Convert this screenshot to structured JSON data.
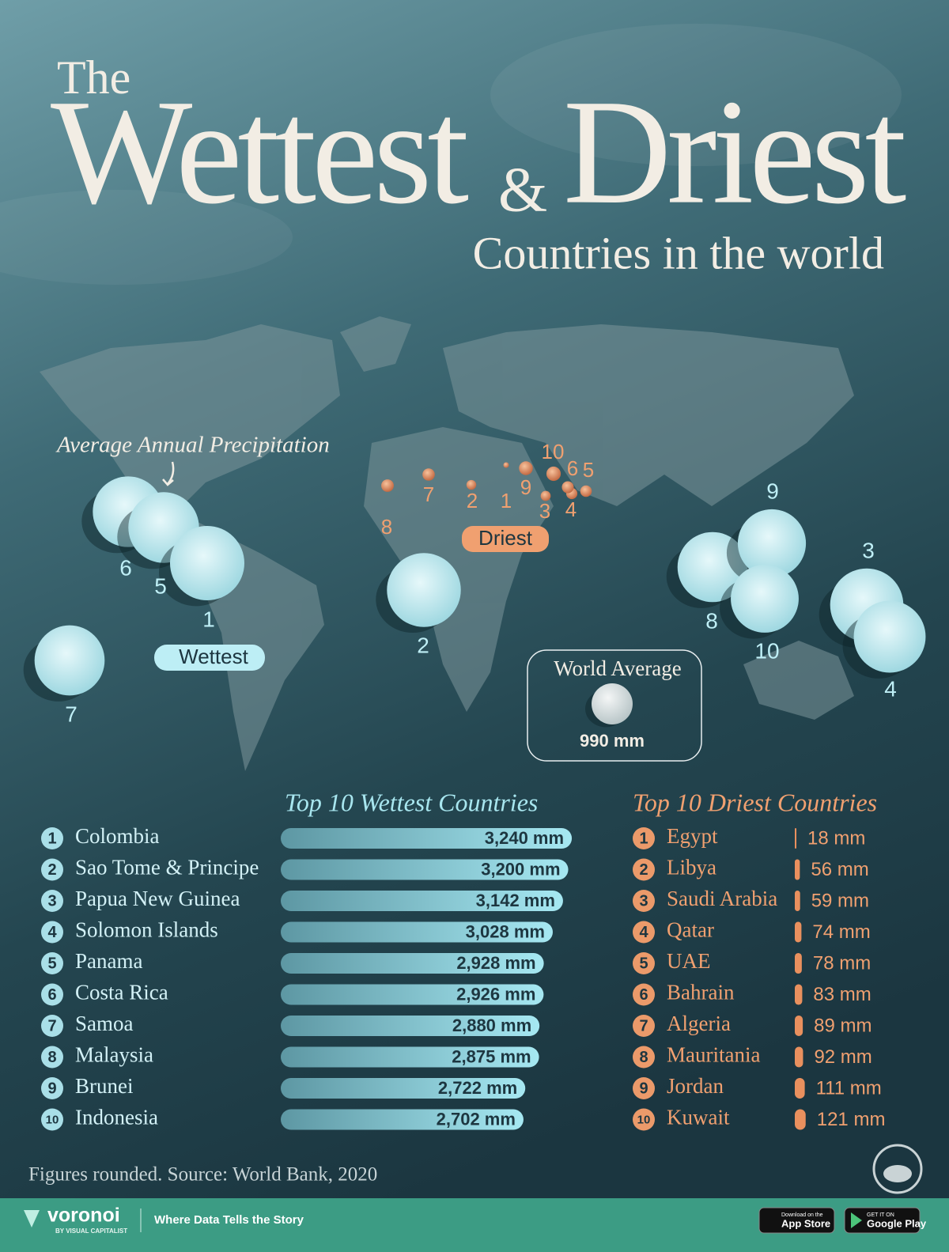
{
  "title": {
    "pre": "The",
    "left": "Wettest",
    "amp": "&",
    "right": "Driest",
    "sub": "Countries in the world"
  },
  "map": {
    "legend_label": "Average Annual Precipitation",
    "wettest_tag": "Wettest",
    "driest_tag": "Driest",
    "world_average": {
      "label": "World Average",
      "value": 990,
      "value_label": "990 mm"
    }
  },
  "ranks": [
    "1",
    "2",
    "3",
    "4",
    "5",
    "6",
    "7",
    "8",
    "9",
    "10"
  ],
  "chart_data": [
    {
      "type": "bar",
      "title": "Top 10 Wettest Countries",
      "color": "#9fe3ee",
      "categories": [
        "Colombia",
        "Sao Tome & Principe",
        "Papua New Guinea",
        "Solomon Islands",
        "Panama",
        "Costa Rica",
        "Samoa",
        "Malaysia",
        "Brunei",
        "Indonesia"
      ],
      "values": [
        3240,
        3200,
        3142,
        3028,
        2928,
        2926,
        2880,
        2875,
        2722,
        2702
      ],
      "value_labels": [
        "3,240 mm",
        "3,200 mm",
        "3,142 mm",
        "3,028 mm",
        "2,928 mm",
        "2,926 mm",
        "2,880 mm",
        "2,875 mm",
        "2,722 mm",
        "2,702 mm"
      ]
    },
    {
      "type": "bar",
      "title": "Top 10 Driest Countries",
      "color": "#e9905e",
      "categories": [
        "Egypt",
        "Libya",
        "Saudi Arabia",
        "Qatar",
        "UAE",
        "Bahrain",
        "Algeria",
        "Mauritania",
        "Jordan",
        "Kuwait"
      ],
      "values": [
        18,
        56,
        59,
        74,
        78,
        83,
        89,
        92,
        111,
        121
      ],
      "value_labels": [
        "18 mm",
        "56 mm",
        "59 mm",
        "74 mm",
        "78 mm",
        "83 mm",
        "89 mm",
        "92 mm",
        "111 mm",
        "121 mm"
      ]
    }
  ],
  "source": "Figures rounded. Source: World Bank, 2020",
  "footer": {
    "brand": "voronoi",
    "brand_sub": "BY VISUAL CAPITALIST",
    "tagline": "Where Data Tells the Story",
    "app_small": "Download on the",
    "app": "App Store",
    "google_small": "GET IT ON",
    "google": "Google Play"
  }
}
